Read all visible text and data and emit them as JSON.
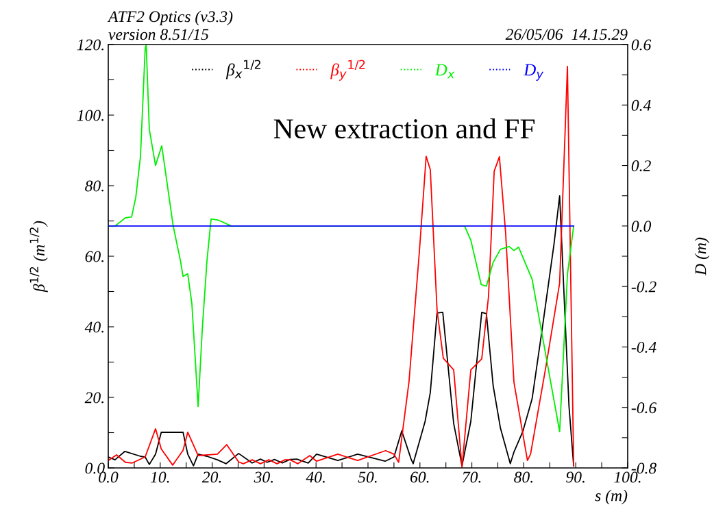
{
  "chart_data": {
    "type": "line",
    "title": "ATF2 Optics (v3.3)",
    "subtitle": "version 8.51/15",
    "annotations": [
      "26/05/06  14.15.29",
      "New extraction and FF"
    ],
    "xlabel": "s (m)",
    "ylabel": "β$^{1/2}$ (m$^{1/2}$)",
    "y2label": "D (m)",
    "xlim": [
      0,
      100
    ],
    "ylim": [
      0,
      120
    ],
    "y2lim": [
      -0.8,
      0.6
    ],
    "xticks": [
      {
        "value": 0,
        "label": "0.0"
      },
      {
        "value": 5,
        "label": null
      },
      {
        "value": 10,
        "label": "10."
      },
      {
        "value": 15,
        "label": null
      },
      {
        "value": 20,
        "label": "20."
      },
      {
        "value": 25,
        "label": null
      },
      {
        "value": 30,
        "label": "30."
      },
      {
        "value": 35,
        "label": null
      },
      {
        "value": 40,
        "label": "40."
      },
      {
        "value": 45,
        "label": null
      },
      {
        "value": 50,
        "label": "50."
      },
      {
        "value": 55,
        "label": null
      },
      {
        "value": 60,
        "label": "60."
      },
      {
        "value": 65,
        "label": null
      },
      {
        "value": 70,
        "label": "70."
      },
      {
        "value": 75,
        "label": null
      },
      {
        "value": 80,
        "label": "80."
      },
      {
        "value": 85,
        "label": null
      },
      {
        "value": 90,
        "label": "90."
      },
      {
        "value": 95,
        "label": null
      },
      {
        "value": 100,
        "label": "100."
      }
    ],
    "yticks": [
      {
        "value": 0,
        "label": "0.0"
      },
      {
        "value": 10,
        "label": null
      },
      {
        "value": 20,
        "label": "20."
      },
      {
        "value": 30,
        "label": null
      },
      {
        "value": 40,
        "label": "40."
      },
      {
        "value": 50,
        "label": null
      },
      {
        "value": 60,
        "label": "60."
      },
      {
        "value": 70,
        "label": null
      },
      {
        "value": 80,
        "label": "80."
      },
      {
        "value": 90,
        "label": null
      },
      {
        "value": 100,
        "label": "100."
      },
      {
        "value": 110,
        "label": null
      },
      {
        "value": 120,
        "label": "120."
      }
    ],
    "y2ticks": [
      {
        "value": -0.8,
        "label": "-0.8"
      },
      {
        "value": -0.7,
        "label": null
      },
      {
        "value": -0.6,
        "label": "-0.6"
      },
      {
        "value": -0.5,
        "label": null
      },
      {
        "value": -0.4,
        "label": "-0.4"
      },
      {
        "value": -0.3,
        "label": null
      },
      {
        "value": -0.2,
        "label": "-0.2"
      },
      {
        "value": -0.1,
        "label": null
      },
      {
        "value": 0,
        "label": "0.0"
      },
      {
        "value": 0.1,
        "label": null
      },
      {
        "value": 0.2,
        "label": "0.2"
      },
      {
        "value": 0.3,
        "label": null
      },
      {
        "value": 0.4,
        "label": "0.4"
      },
      {
        "value": 0.5,
        "label": null
      },
      {
        "value": 0.6,
        "label": "0.6"
      }
    ],
    "grid": false,
    "legend": "top",
    "marker": "none",
    "line_style": "solid",
    "series": [
      {
        "name": "β$_{x}$$^{1/2}$",
        "color": "#000000",
        "x": [
          0,
          1.3,
          3.2,
          6.2,
          7.1,
          7.9,
          9.1,
          10.2,
          14.4,
          15.3,
          16.4,
          17.3,
          19.0,
          21.0,
          22.7,
          25.1,
          27.7,
          29.3,
          30.6,
          32.0,
          33.5,
          35.0,
          36.3,
          38.5,
          40.1,
          44.2,
          48.0,
          53.3,
          55.0,
          56.5,
          58.3,
          58.7,
          61.0,
          62.0,
          63.3,
          64.4,
          66.5,
          68.1,
          69.8,
          71.9,
          72.8,
          74.1,
          75.5,
          77.4,
          78.1,
          79.8,
          81.6,
          83.6,
          85.8,
          86.9,
          88.7,
          89.6
        ],
        "values": [
          3.1,
          2.3,
          4.7,
          3.3,
          3.1,
          1.0,
          3.9,
          10.1,
          10.1,
          3.9,
          0.6,
          3.9,
          3.3,
          2.3,
          1.2,
          4.1,
          1.4,
          2.5,
          1.6,
          2.4,
          1.4,
          2.4,
          2.5,
          1.4,
          3.9,
          2.1,
          3.9,
          1.9,
          3.1,
          10.5,
          2.5,
          1.2,
          13.2,
          21.4,
          43.9,
          44.1,
          12.6,
          0.6,
          13.2,
          44.1,
          43.7,
          23.3,
          11.3,
          1.2,
          4.5,
          10.3,
          19.6,
          40.0,
          63.3,
          77.1,
          17.5,
          0.6
        ]
      },
      {
        "name": "β$_{y}$$^{1/2}$",
        "color": "#ff0000",
        "x": [
          0,
          1.6,
          3.3,
          4.6,
          7.1,
          9.1,
          10.2,
          12.4,
          14.4,
          15.3,
          17.3,
          21.0,
          22.8,
          25.1,
          26.0,
          27.7,
          29.3,
          30.9,
          32.5,
          34.0,
          35.0,
          36.5,
          38.8,
          40.1,
          44.2,
          48.0,
          53.4,
          55.0,
          55.9,
          57.9,
          59.9,
          61.2,
          62.0,
          63.3,
          64.5,
          66.5,
          68.1,
          69.8,
          71.9,
          73.2,
          74.3,
          75.3,
          76.5,
          78.1,
          80.7,
          81.3,
          84.3,
          86.9,
          88.4,
          89.6
        ],
        "values": [
          2.1,
          3.7,
          1.6,
          1.4,
          3.1,
          11.1,
          5.4,
          0.8,
          5.0,
          10.1,
          3.5,
          3.9,
          6.6,
          1.7,
          1.2,
          2.3,
          1.2,
          2.3,
          1.2,
          2.3,
          2.3,
          1.2,
          3.5,
          1.9,
          3.9,
          2.1,
          4.9,
          3.9,
          1.6,
          24.5,
          61.4,
          88.3,
          84.5,
          44.7,
          31.1,
          27.8,
          0.2,
          27.8,
          30.9,
          48.5,
          84.1,
          88.2,
          66.6,
          24.3,
          2.1,
          3.9,
          29.1,
          52.4,
          113.8,
          0.6
        ]
      },
      {
        "name": "D$_{x}$",
        "color": "#00ee00",
        "axis": "y2",
        "x": [
          0,
          1.3,
          3.3,
          4.5,
          5.3,
          6.2,
          7.1,
          7.3,
          7.9,
          9.1,
          10.3,
          12.5,
          13.9,
          14.4,
          15.3,
          16.1,
          17.3,
          18.1,
          19.0,
          19.8,
          21.1,
          23.7,
          68.6,
          69.8,
          71.8,
          72.8,
          74.1,
          75.5,
          77.2,
          78.1,
          79.0,
          81.6,
          86.9,
          88.4,
          89.6
        ],
        "values": [
          0,
          0,
          0.027,
          0.03,
          0.095,
          0.23,
          0.585,
          0.6,
          0.32,
          0.2,
          0.265,
          0,
          -0.115,
          -0.167,
          -0.158,
          -0.258,
          -0.597,
          -0.341,
          -0.115,
          0.023,
          0.02,
          0,
          0,
          -0.047,
          -0.194,
          -0.199,
          -0.12,
          -0.077,
          -0.068,
          -0.081,
          -0.07,
          -0.176,
          -0.68,
          -0.16,
          0
        ]
      },
      {
        "name": "D$_{y}$",
        "color": "#0000ff",
        "axis": "y2",
        "x": [
          0,
          89.6
        ],
        "values": [
          0,
          0
        ]
      }
    ]
  }
}
